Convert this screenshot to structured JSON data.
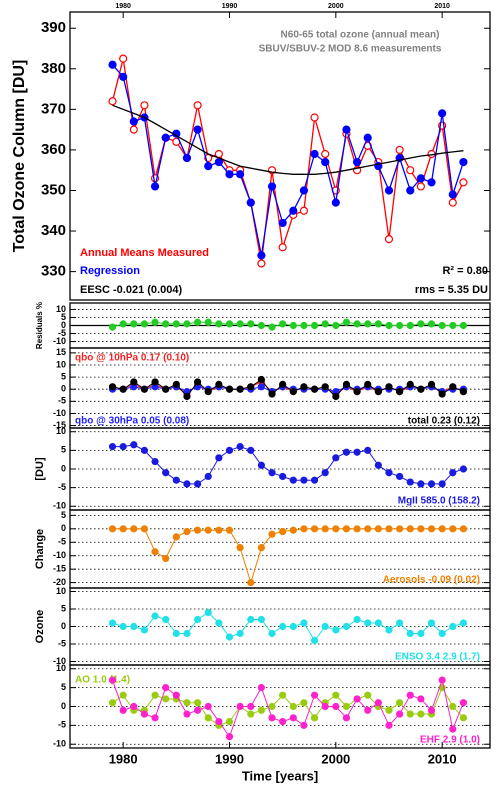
{
  "chart_data": [
    {
      "type": "line",
      "title": "N60-65 total ozone (annual mean)",
      "subtitle": "SBUV/SBUV-2  MOD 8.6  measurements",
      "y_label": "Total Ozone Column [DU]",
      "x": [
        1979,
        1980,
        1981,
        1982,
        1983,
        1984,
        1985,
        1986,
        1987,
        1988,
        1989,
        1990,
        1991,
        1992,
        1993,
        1994,
        1995,
        1996,
        1997,
        1998,
        1999,
        2000,
        2001,
        2002,
        2003,
        2004,
        2005,
        2006,
        2007,
        2008,
        2009,
        2010,
        2011,
        2012
      ],
      "xlim": [
        1975,
        2014.5
      ],
      "xticks": [
        1980,
        1990,
        2000,
        2010
      ],
      "xaxis_top": true,
      "ylim": [
        323,
        394
      ],
      "yticks": [
        330,
        340,
        350,
        360,
        370,
        380,
        390
      ],
      "series": [
        {
          "name": "Annual Means Measured",
          "color": "#ff0000",
          "marker": "open",
          "values": [
            372,
            382.5,
            365,
            371,
            353,
            363,
            362,
            358,
            371,
            358,
            359,
            355,
            355,
            347,
            332,
            355,
            336,
            344,
            345,
            368,
            359,
            350,
            364,
            355,
            361,
            357,
            338,
            360,
            355,
            351,
            359,
            366,
            347,
            352
          ]
        },
        {
          "name": "Regression",
          "color": "#0000ff",
          "marker": "filled",
          "values": [
            381,
            378,
            367,
            368,
            351,
            363,
            364,
            358,
            365,
            356,
            357,
            354,
            354,
            347,
            334,
            351,
            342,
            345,
            350,
            359,
            357,
            347,
            365,
            357,
            363,
            356,
            350,
            358,
            350,
            353,
            352,
            369,
            349,
            357
          ]
        },
        {
          "name": "EESC  -0.021 (0.004)",
          "color": "#000000",
          "marker": "none",
          "values": [
            371,
            370,
            369,
            368,
            366.5,
            365,
            363.5,
            362,
            360.5,
            359,
            358,
            357,
            356,
            355.5,
            355,
            354.5,
            354.2,
            354,
            354,
            354,
            354.2,
            354.5,
            355,
            355.5,
            356,
            356.5,
            357,
            357.5,
            358,
            358.5,
            358.8,
            359.2,
            359.5,
            359.8
          ]
        }
      ],
      "annotations": [
        "R² = 0.80",
        "rms = 5.35 DU"
      ]
    },
    {
      "type": "line",
      "y_label": "Residuals %",
      "zero_line": true,
      "x": [
        1979,
        1980,
        1981,
        1982,
        1983,
        1984,
        1985,
        1986,
        1987,
        1988,
        1989,
        1990,
        1991,
        1992,
        1993,
        1994,
        1995,
        1996,
        1997,
        1998,
        1999,
        2000,
        2001,
        2002,
        2003,
        2004,
        2005,
        2006,
        2007,
        2008,
        2009,
        2010,
        2011,
        2012
      ],
      "xlim": [
        1975,
        2014.5
      ],
      "ylim": [
        -14,
        14
      ],
      "yticks": [
        10,
        5,
        0,
        -5,
        -10
      ],
      "series": [
        {
          "color": "#22cc22",
          "marker": "filled",
          "values": [
            -1,
            1,
            1,
            1,
            2,
            1,
            1,
            1,
            2,
            2,
            1,
            1,
            1,
            1,
            0,
            -1,
            1,
            0,
            0,
            0,
            1,
            0,
            2,
            1,
            1,
            1,
            0,
            0,
            0,
            1,
            1,
            0,
            0,
            0
          ]
        }
      ]
    },
    {
      "type": "line",
      "x": [
        1979,
        1980,
        1981,
        1982,
        1983,
        1984,
        1985,
        1986,
        1987,
        1988,
        1989,
        1990,
        1991,
        1992,
        1993,
        1994,
        1995,
        1996,
        1997,
        1998,
        1999,
        2000,
        2001,
        2002,
        2003,
        2004,
        2005,
        2006,
        2007,
        2008,
        2009,
        2010,
        2011,
        2012
      ],
      "xlim": [
        1975,
        2014.5
      ],
      "ylim": [
        -16,
        17
      ],
      "yticks": [
        15,
        10,
        5,
        0,
        -5,
        -10,
        -15
      ],
      "series": [
        {
          "name": "qbo @ 10hPa 0.17 (0.10)",
          "color": "#ff2020",
          "marker": "filled",
          "values": [
            1,
            0,
            2,
            0,
            2,
            0,
            1,
            -2,
            2,
            -1,
            1,
            0,
            0,
            1,
            3,
            -1,
            1,
            -1,
            1,
            0,
            1,
            -2,
            1,
            -1,
            1,
            -1,
            1,
            -1,
            1,
            0,
            1,
            -1,
            1,
            -1
          ]
        },
        {
          "name": "qbo @ 30hPa  0.05 (0.08)",
          "color": "#2020ff",
          "marker": "filled",
          "values": [
            0,
            0,
            1,
            0,
            1,
            0,
            1,
            -1,
            1,
            0,
            1,
            0,
            0,
            0,
            1,
            -1,
            1,
            0,
            0,
            0,
            0,
            -1,
            1,
            0,
            1,
            0,
            0,
            0,
            1,
            0,
            1,
            -1,
            0,
            0
          ]
        },
        {
          "name": "total  0.23 (0.12)",
          "color": "#000000",
          "marker": "filled",
          "values": [
            1,
            0,
            3,
            0,
            3,
            0,
            2,
            -3,
            3,
            -1,
            2,
            0,
            0,
            1,
            4,
            -2,
            2,
            -1,
            1,
            0,
            1,
            -3,
            2,
            -1,
            2,
            -1,
            1,
            -1,
            2,
            0,
            2,
            -2,
            1,
            -1
          ]
        }
      ]
    },
    {
      "type": "line",
      "y_label": "[DU]",
      "x": [
        1979,
        1980,
        1981,
        1982,
        1983,
        1984,
        1985,
        1986,
        1987,
        1988,
        1989,
        1990,
        1991,
        1992,
        1993,
        1994,
        1995,
        1996,
        1997,
        1998,
        1999,
        2000,
        2001,
        2002,
        2003,
        2004,
        2005,
        2006,
        2007,
        2008,
        2009,
        2010,
        2011,
        2012
      ],
      "xlim": [
        1975,
        2014.5
      ],
      "ylim": [
        -11,
        11
      ],
      "yticks": [
        10,
        5,
        0,
        -5,
        -10
      ],
      "series": [
        {
          "name": "MgII  585.0 (158.2)",
          "color": "#1a1ae0",
          "marker": "filled",
          "values": [
            6,
            6,
            6.5,
            5,
            2,
            -1,
            -3,
            -4,
            -4,
            -2,
            3,
            5,
            6,
            5,
            1,
            -1,
            -2,
            -3,
            -3,
            -3,
            -1,
            3,
            4.5,
            4.5,
            5,
            1,
            -1,
            -2,
            -3.5,
            -4,
            -4,
            -4,
            -1,
            0
          ]
        }
      ]
    },
    {
      "type": "line",
      "y_label": "Change",
      "x": [
        1979,
        1980,
        1981,
        1982,
        1983,
        1984,
        1985,
        1986,
        1987,
        1988,
        1989,
        1990,
        1991,
        1992,
        1993,
        1994,
        1995,
        1996,
        1997,
        1998,
        1999,
        2000,
        2001,
        2002,
        2003,
        2004,
        2005,
        2006,
        2007,
        2008,
        2009,
        2010,
        2011,
        2012
      ],
      "xlim": [
        1975,
        2014.5
      ],
      "ylim": [
        -22,
        7
      ],
      "yticks": [
        5,
        0,
        -5,
        -10,
        -15,
        -20
      ],
      "series": [
        {
          "name": "Aerosols  -0.09 (0.02)",
          "color": "#f08000",
          "marker": "filled",
          "values": [
            0,
            0,
            0,
            0,
            -8.5,
            -11,
            -3,
            -1,
            -0.5,
            -0.5,
            -0.5,
            -0.5,
            -7,
            -20,
            -7,
            -2,
            -1,
            -0.5,
            0,
            0,
            0,
            0,
            0,
            0,
            0,
            0,
            0,
            0,
            0,
            0,
            0,
            0,
            0,
            0
          ]
        }
      ]
    },
    {
      "type": "line",
      "y_label": "Ozone",
      "x": [
        1979,
        1980,
        1981,
        1982,
        1983,
        1984,
        1985,
        1986,
        1987,
        1988,
        1989,
        1990,
        1991,
        1992,
        1993,
        1994,
        1995,
        1996,
        1997,
        1998,
        1999,
        2000,
        2001,
        2002,
        2003,
        2004,
        2005,
        2006,
        2007,
        2008,
        2009,
        2010,
        2011,
        2012
      ],
      "xlim": [
        1975,
        2014.5
      ],
      "ylim": [
        -11,
        11
      ],
      "yticks": [
        10,
        5,
        0,
        -5,
        -10
      ],
      "series": [
        {
          "name": "ENSO 3.4  2.9 (1.7)",
          "color": "#20e0e8",
          "marker": "filled",
          "values": [
            1,
            0,
            0,
            -1,
            3,
            2,
            -2,
            -2,
            2,
            4,
            1,
            -3,
            -2,
            2,
            2,
            -2,
            0,
            0,
            1,
            -4,
            0,
            -1,
            0,
            2,
            1,
            1,
            -1,
            1,
            -2,
            -2,
            1,
            -2,
            0,
            1
          ]
        }
      ]
    },
    {
      "type": "line",
      "x_label": "Time [years]",
      "x": [
        1979,
        1980,
        1981,
        1982,
        1983,
        1984,
        1985,
        1986,
        1987,
        1988,
        1989,
        1990,
        1991,
        1992,
        1993,
        1994,
        1995,
        1996,
        1997,
        1998,
        1999,
        2000,
        2001,
        2002,
        2003,
        2004,
        2005,
        2006,
        2007,
        2008,
        2009,
        2010,
        2011,
        2012
      ],
      "xlim": [
        1975,
        2014.5
      ],
      "xticks": [
        1980,
        1990,
        2000,
        2010
      ],
      "ylim": [
        -11,
        11
      ],
      "yticks": [
        10,
        5,
        0,
        -5,
        -10
      ],
      "series": [
        {
          "name": "AO  1.0 (1.4)",
          "color": "#99cc11",
          "marker": "filled",
          "values": [
            1,
            3,
            -1,
            -1,
            3,
            2,
            2,
            1,
            1,
            -3,
            -5,
            -4,
            0,
            -2,
            -1,
            0,
            3,
            0,
            1,
            -3,
            1,
            3,
            0,
            2,
            3,
            0,
            -1,
            1,
            -2,
            -2,
            -2,
            5,
            0,
            -3
          ]
        },
        {
          "name": "EHF  2.9 (1.0)",
          "color": "#ff22cc",
          "marker": "filled",
          "values": [
            7,
            -1,
            0,
            -2,
            -3,
            5,
            3,
            -2,
            -1,
            0,
            -4,
            -8,
            0,
            0,
            5,
            -3,
            -4,
            -3,
            -5,
            3,
            0,
            0,
            -3,
            2,
            -1,
            1,
            -5,
            -2,
            3,
            2,
            -1,
            7,
            -6,
            1
          ]
        }
      ]
    }
  ]
}
